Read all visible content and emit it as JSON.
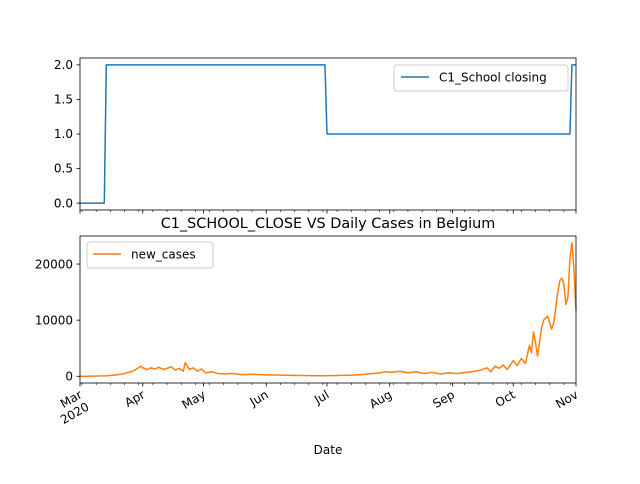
{
  "chart_data": [
    {
      "type": "line",
      "title": "",
      "xlabel": "",
      "ylabel": "",
      "x_range": [
        "2020-03-01",
        "2020-11-01"
      ],
      "ylim": [
        -0.1,
        2.1
      ],
      "yticks": [
        0.0,
        0.5,
        1.0,
        1.5,
        2.0
      ],
      "ytick_labels": [
        "0.0",
        "0.5",
        "1.0",
        "1.5",
        "2.0"
      ],
      "legend_position": "upper right",
      "series": [
        {
          "name": "C1_School closing",
          "color": "#1f77b4",
          "points": [
            [
              "2020-03-01",
              0
            ],
            [
              "2020-03-13",
              0
            ],
            [
              "2020-03-14",
              2
            ],
            [
              "2020-06-30",
              2
            ],
            [
              "2020-07-01",
              1
            ],
            [
              "2020-10-29",
              1
            ],
            [
              "2020-10-30",
              2
            ],
            [
              "2020-11-01",
              2
            ]
          ]
        }
      ]
    },
    {
      "type": "line",
      "title": "C1_SCHOOL_CLOSE VS Daily Cases in Belgium",
      "xlabel": "Date",
      "ylabel": "",
      "x_range": [
        "2020-03-01",
        "2020-11-01"
      ],
      "ylim": [
        -1200,
        25000
      ],
      "yticks": [
        0,
        10000,
        20000
      ],
      "ytick_labels": [
        "0",
        "10000",
        "20000"
      ],
      "xtick_labels": [
        "Mar\n2020",
        "Apr",
        "May",
        "Jun",
        "Jul",
        "Aug",
        "Sep",
        "Oct",
        "Nov"
      ],
      "xtick_dates": [
        "2020-03-01",
        "2020-04-01",
        "2020-05-01",
        "2020-06-01",
        "2020-07-01",
        "2020-08-01",
        "2020-09-01",
        "2020-10-01",
        "2020-11-01"
      ],
      "legend_position": "upper left",
      "series": [
        {
          "name": "new_cases",
          "color": "#ff7f0e",
          "points": [
            [
              "2020-03-01",
              0
            ],
            [
              "2020-03-05",
              10
            ],
            [
              "2020-03-10",
              40
            ],
            [
              "2020-03-14",
              90
            ],
            [
              "2020-03-18",
              200
            ],
            [
              "2020-03-21",
              350
            ],
            [
              "2020-03-24",
              600
            ],
            [
              "2020-03-27",
              900
            ],
            [
              "2020-03-29",
              1300
            ],
            [
              "2020-03-31",
              1800
            ],
            [
              "2020-04-01",
              1500
            ],
            [
              "2020-04-03",
              1200
            ],
            [
              "2020-04-05",
              1500
            ],
            [
              "2020-04-07",
              1300
            ],
            [
              "2020-04-09",
              1600
            ],
            [
              "2020-04-11",
              1200
            ],
            [
              "2020-04-13",
              1400
            ],
            [
              "2020-04-15",
              1700
            ],
            [
              "2020-04-17",
              1100
            ],
            [
              "2020-04-19",
              1400
            ],
            [
              "2020-04-21",
              900
            ],
            [
              "2020-04-22",
              2400
            ],
            [
              "2020-04-24",
              1200
            ],
            [
              "2020-04-26",
              1500
            ],
            [
              "2020-04-28",
              900
            ],
            [
              "2020-04-30",
              1300
            ],
            [
              "2020-05-02",
              600
            ],
            [
              "2020-05-05",
              800
            ],
            [
              "2020-05-08",
              500
            ],
            [
              "2020-05-12",
              400
            ],
            [
              "2020-05-15",
              500
            ],
            [
              "2020-05-20",
              300
            ],
            [
              "2020-05-25",
              350
            ],
            [
              "2020-06-01",
              250
            ],
            [
              "2020-06-08",
              200
            ],
            [
              "2020-06-15",
              150
            ],
            [
              "2020-06-22",
              120
            ],
            [
              "2020-06-29",
              100
            ],
            [
              "2020-07-06",
              130
            ],
            [
              "2020-07-13",
              200
            ],
            [
              "2020-07-18",
              300
            ],
            [
              "2020-07-22",
              450
            ],
            [
              "2020-07-27",
              600
            ],
            [
              "2020-07-30",
              800
            ],
            [
              "2020-08-02",
              700
            ],
            [
              "2020-08-06",
              900
            ],
            [
              "2020-08-10",
              600
            ],
            [
              "2020-08-14",
              800
            ],
            [
              "2020-08-18",
              500
            ],
            [
              "2020-08-22",
              700
            ],
            [
              "2020-08-26",
              400
            ],
            [
              "2020-08-30",
              600
            ],
            [
              "2020-09-03",
              500
            ],
            [
              "2020-09-08",
              700
            ],
            [
              "2020-09-12",
              900
            ],
            [
              "2020-09-15",
              1100
            ],
            [
              "2020-09-18",
              1500
            ],
            [
              "2020-09-20",
              800
            ],
            [
              "2020-09-22",
              1800
            ],
            [
              "2020-09-24",
              1400
            ],
            [
              "2020-09-26",
              2000
            ],
            [
              "2020-09-28",
              1200
            ],
            [
              "2020-10-01",
              2800
            ],
            [
              "2020-10-03",
              1900
            ],
            [
              "2020-10-05",
              3200
            ],
            [
              "2020-10-07",
              2300
            ],
            [
              "2020-10-09",
              5500
            ],
            [
              "2020-10-10",
              4200
            ],
            [
              "2020-10-11",
              7900
            ],
            [
              "2020-10-12",
              6000
            ],
            [
              "2020-10-13",
              3600
            ],
            [
              "2020-10-15",
              8600
            ],
            [
              "2020-10-16",
              10000
            ],
            [
              "2020-10-18",
              10700
            ],
            [
              "2020-10-20",
              8400
            ],
            [
              "2020-10-21",
              9500
            ],
            [
              "2020-10-23",
              15000
            ],
            [
              "2020-10-24",
              17000
            ],
            [
              "2020-10-25",
              17500
            ],
            [
              "2020-10-26",
              16500
            ],
            [
              "2020-10-27",
              12800
            ],
            [
              "2020-10-28",
              14000
            ],
            [
              "2020-10-29",
              21000
            ],
            [
              "2020-10-30",
              23800
            ],
            [
              "2020-10-31",
              19000
            ],
            [
              "2020-11-01",
              11700
            ]
          ]
        }
      ]
    }
  ]
}
